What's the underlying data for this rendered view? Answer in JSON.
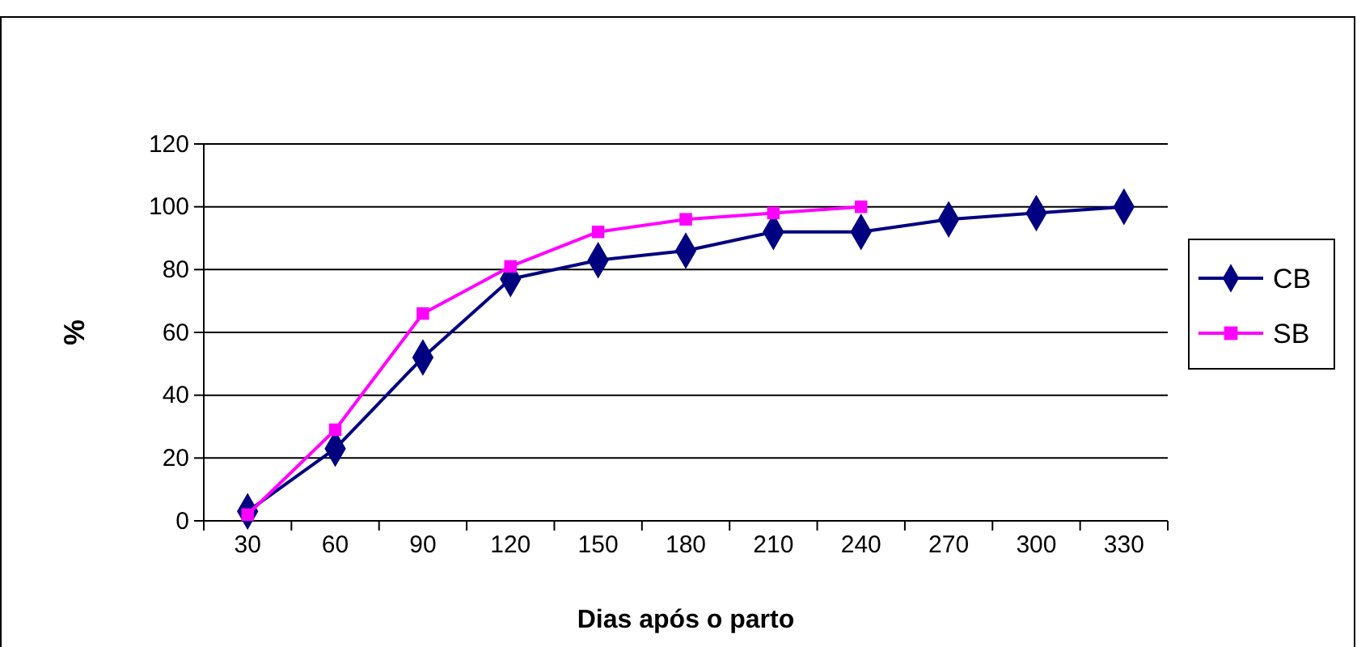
{
  "chart_data": {
    "type": "line",
    "xlabel": "Dias após o parto",
    "ylabel": "%",
    "categories": [
      "30",
      "60",
      "90",
      "120",
      "150",
      "180",
      "210",
      "240",
      "270",
      "300",
      "330"
    ],
    "series": [
      {
        "name": "CB",
        "color": "#000080",
        "marker": "diamond",
        "values": [
          3,
          23,
          52,
          77,
          83,
          86,
          92,
          92,
          96,
          98,
          100
        ]
      },
      {
        "name": "SB",
        "color": "#ff00ff",
        "marker": "square",
        "values": [
          2,
          29,
          66,
          81,
          92,
          96,
          98,
          100,
          null,
          null,
          null
        ]
      }
    ],
    "ylim": [
      0,
      120
    ],
    "yticks": [
      0,
      20,
      40,
      60,
      80,
      100,
      120
    ],
    "grid": "y",
    "legend": "right",
    "line_style": "solid"
  }
}
